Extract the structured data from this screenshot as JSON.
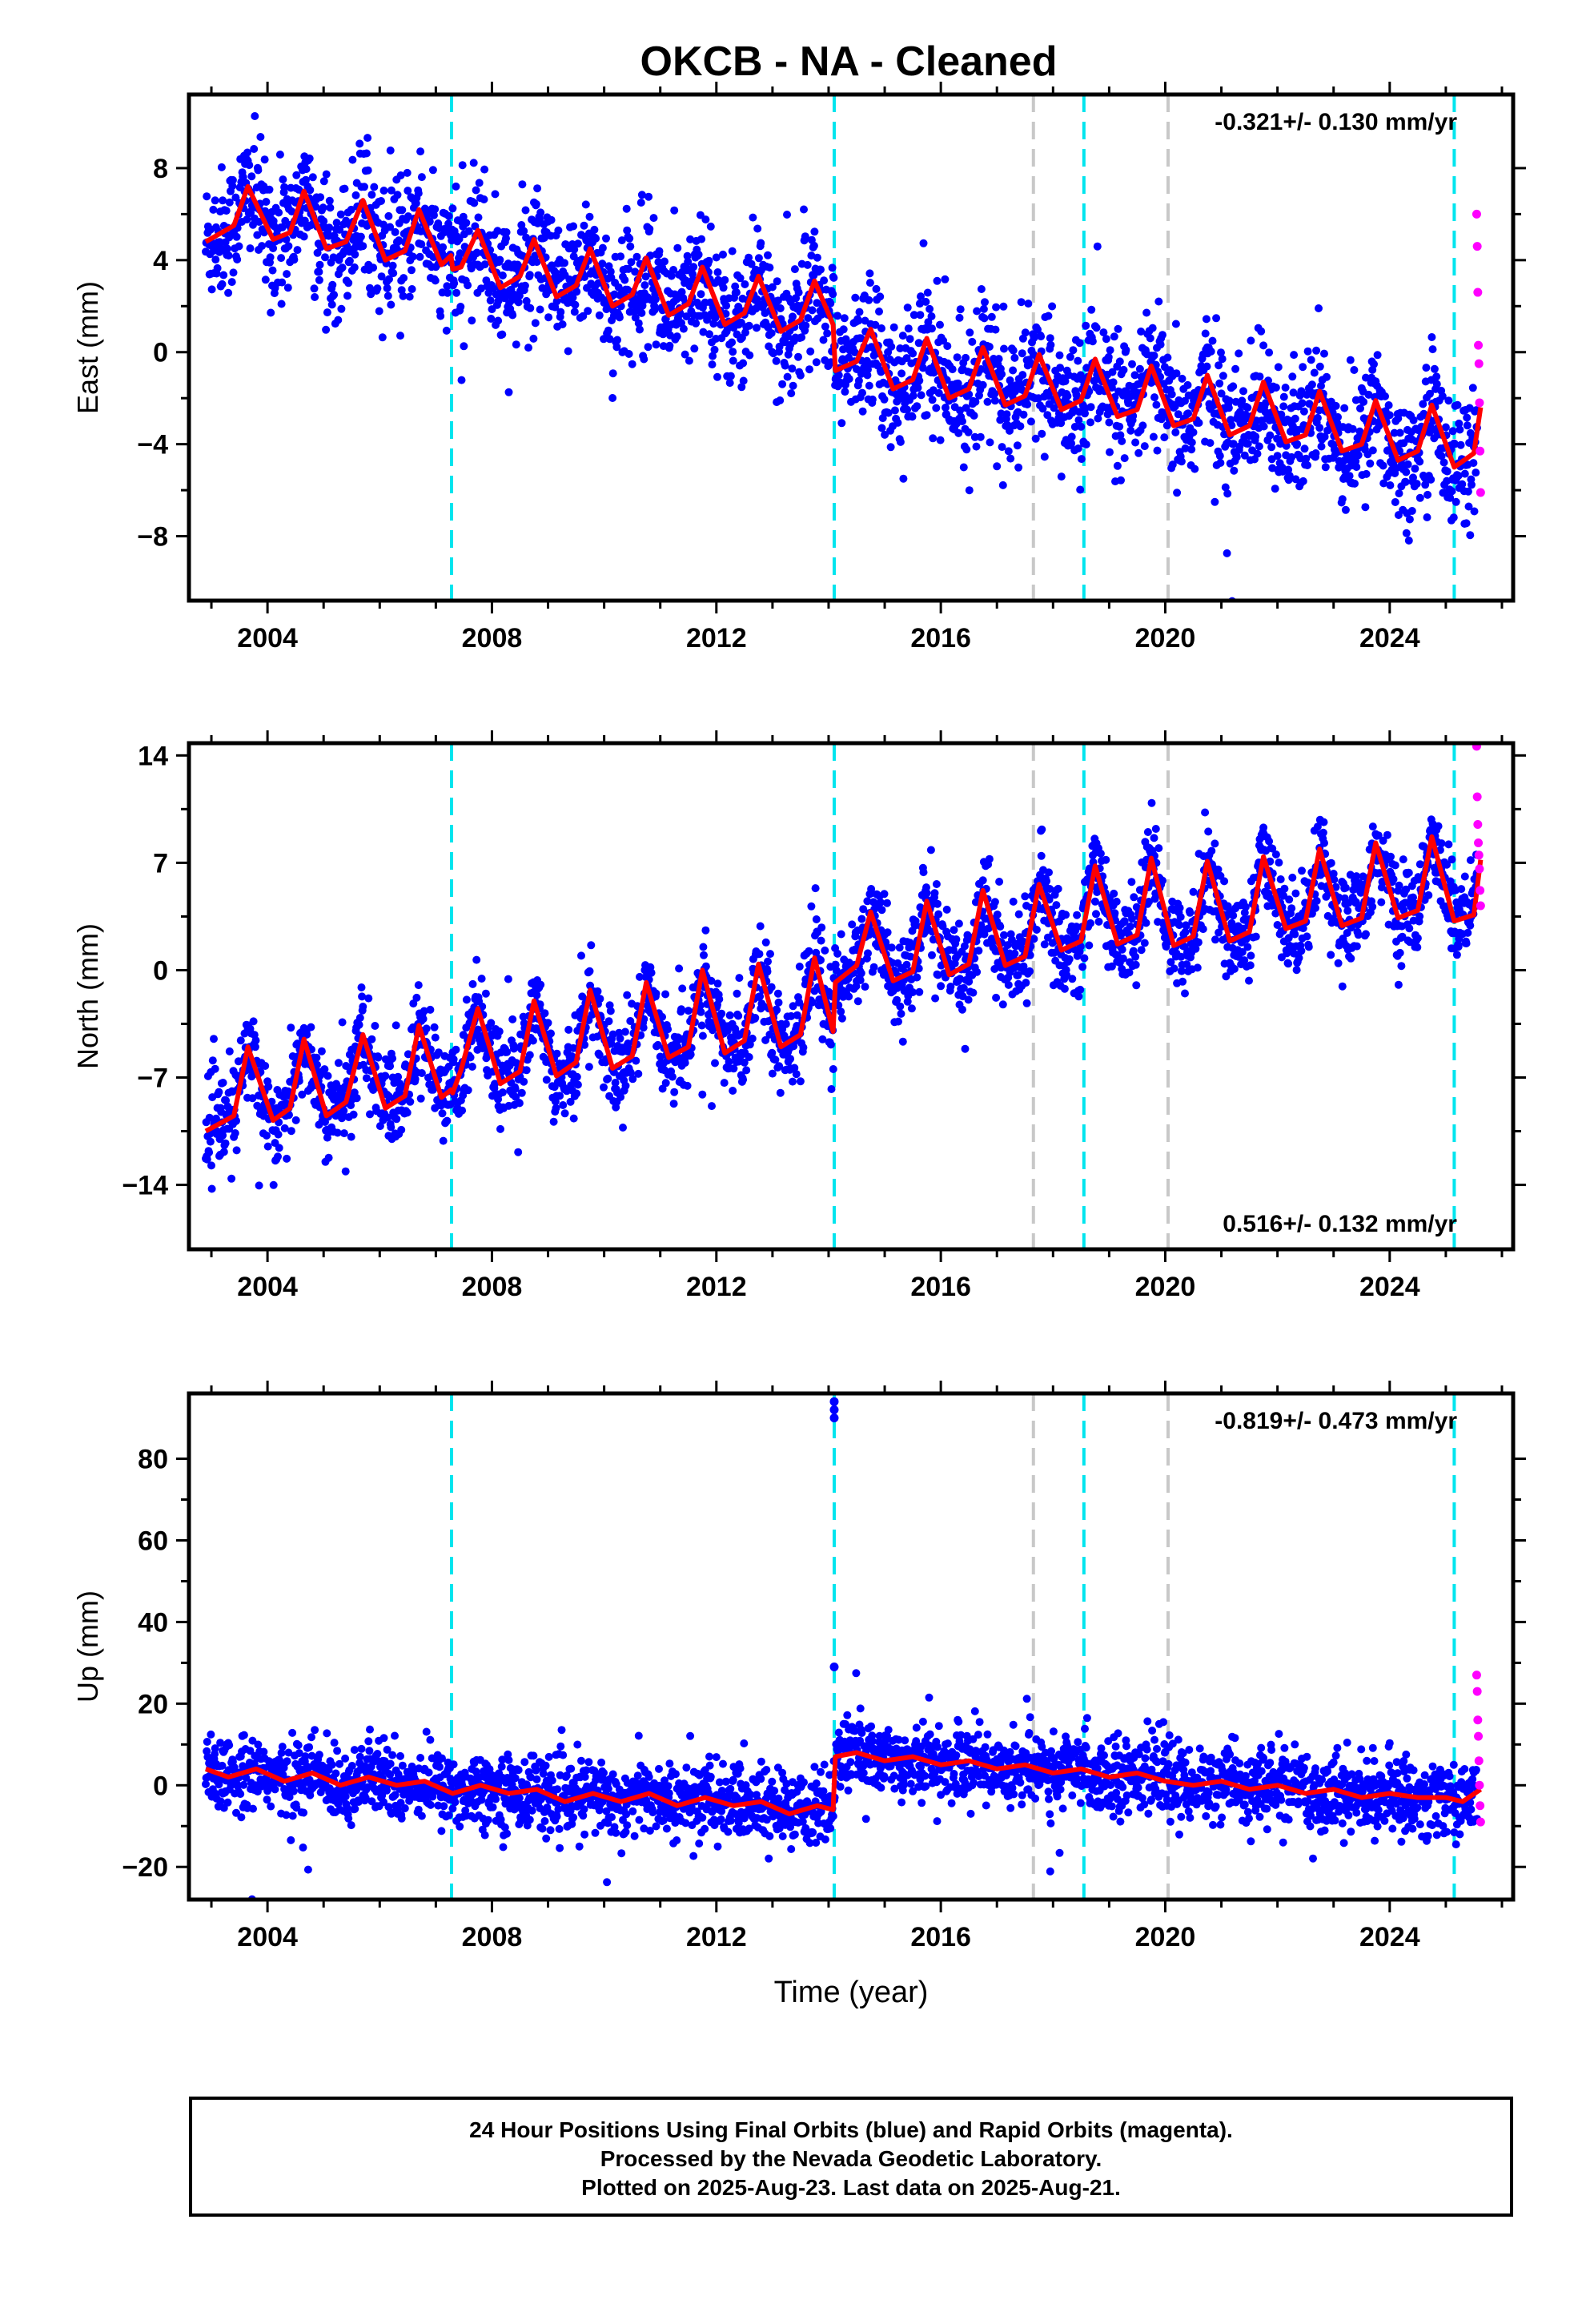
{
  "title": "OKCB  - NA - Cleaned",
  "colors": {
    "final_orbits": "#0000ff",
    "rapid_orbits": "#ff00ff",
    "model": "#ff0000",
    "equipment_change": "#00e5ee",
    "earthquake": "#c8c8c8"
  },
  "footer": {
    "line1": "24 Hour Positions Using Final Orbits (blue) and Rapid Orbits (magenta).",
    "line2": "Processed by the Nevada Geodetic Laboratory.",
    "line3": "Plotted on 2025-Aug-23. Last data on 2025-Aug-21."
  },
  "chart_data": [
    {
      "type": "scatter",
      "component": "east",
      "ylabel": "East (mm)",
      "xlabel": "",
      "xlim": [
        2002.6,
        2026.2
      ],
      "ylim": [
        -10.8,
        11.2
      ],
      "xticks": [
        2004,
        2008,
        2012,
        2016,
        2020,
        2024
      ],
      "yticks": [
        -8,
        -4,
        0,
        4,
        8
      ],
      "rate_label": "-0.321+/- 0.130 mm/yr",
      "rate_label_position": "top-right",
      "model": {
        "x": [
          2002.9,
          2003.4,
          2003.65,
          2004.1,
          2004.4,
          2004.65,
          2005.05,
          2005.4,
          2005.7,
          2006.1,
          2006.45,
          2006.7,
          2007.1,
          2007.27,
          2007.3,
          2007.45,
          2007.75,
          2008.15,
          2008.5,
          2008.75,
          2009.15,
          2009.5,
          2009.75,
          2010.15,
          2010.5,
          2010.75,
          2011.15,
          2011.5,
          2011.75,
          2012.15,
          2012.5,
          2012.75,
          2013.15,
          2013.5,
          2013.75,
          2014.08,
          2014.12,
          2014.5,
          2014.75,
          2015.15,
          2015.5,
          2015.75,
          2016.15,
          2016.5,
          2016.75,
          2017.15,
          2017.5,
          2017.75,
          2018.15,
          2018.5,
          2018.75,
          2019.15,
          2019.5,
          2019.75,
          2020.15,
          2020.5,
          2020.75,
          2021.15,
          2021.5,
          2021.75,
          2022.15,
          2022.5,
          2022.75,
          2023.15,
          2023.5,
          2023.75,
          2024.15,
          2024.5,
          2024.75,
          2025.15,
          2025.5,
          2025.62
        ],
        "y": [
          4.8,
          5.5,
          7.2,
          4.9,
          5.2,
          7.0,
          4.5,
          4.8,
          6.6,
          4.0,
          4.4,
          6.2,
          3.8,
          4.2,
          3.6,
          3.7,
          5.3,
          2.8,
          3.3,
          4.9,
          2.4,
          2.9,
          4.5,
          2.0,
          2.5,
          4.1,
          1.6,
          2.1,
          3.7,
          1.2,
          1.7,
          3.3,
          0.9,
          1.4,
          3.1,
          1.2,
          -0.8,
          -0.4,
          1.0,
          -1.6,
          -1.2,
          0.6,
          -2.0,
          -1.6,
          0.2,
          -2.3,
          -1.9,
          -0.1,
          -2.5,
          -2.1,
          -0.3,
          -2.8,
          -2.5,
          -0.6,
          -3.2,
          -2.9,
          -1.0,
          -3.6,
          -3.2,
          -1.3,
          -3.9,
          -3.6,
          -1.7,
          -4.3,
          -4.0,
          -2.1,
          -4.7,
          -4.3,
          -2.3,
          -5.0,
          -4.4,
          -2.4
        ]
      },
      "rapid_points": {
        "x": [
          2025.55,
          2025.56,
          2025.57,
          2025.58,
          2025.59,
          2025.6,
          2025.61,
          2025.62
        ],
        "y": [
          6.0,
          4.6,
          2.6,
          0.3,
          -0.5,
          -2.2,
          -4.3,
          -6.1
        ]
      },
      "equipment_changes": [
        2007.28,
        2014.1,
        2018.55,
        2025.15
      ],
      "earthquakes": [
        2017.65,
        2020.05
      ],
      "scatter_noise": 1.4
    },
    {
      "type": "scatter",
      "component": "north",
      "ylabel": "North (mm)",
      "xlabel": "",
      "xlim": [
        2002.6,
        2026.2
      ],
      "ylim": [
        -18.2,
        14.8
      ],
      "xticks": [
        2004,
        2008,
        2012,
        2016,
        2020,
        2024
      ],
      "yticks": [
        -14,
        -7,
        0,
        7,
        14
      ],
      "rate_label": "0.516+/- 0.132 mm/yr",
      "rate_label_position": "bottom-right",
      "model": {
        "x": [
          2002.9,
          2003.4,
          2003.65,
          2004.1,
          2004.4,
          2004.65,
          2005.05,
          2005.4,
          2005.7,
          2006.1,
          2006.45,
          2006.7,
          2007.1,
          2007.27,
          2007.3,
          2007.45,
          2007.75,
          2008.15,
          2008.5,
          2008.75,
          2009.15,
          2009.5,
          2009.75,
          2010.15,
          2010.5,
          2010.75,
          2011.15,
          2011.5,
          2011.75,
          2012.15,
          2012.5,
          2012.75,
          2013.15,
          2013.5,
          2013.75,
          2014.08,
          2014.12,
          2014.5,
          2014.75,
          2015.15,
          2015.5,
          2015.75,
          2016.15,
          2016.5,
          2016.75,
          2017.15,
          2017.5,
          2017.75,
          2018.15,
          2018.5,
          2018.75,
          2019.15,
          2019.5,
          2019.75,
          2020.15,
          2020.5,
          2020.75,
          2021.15,
          2021.5,
          2021.75,
          2022.15,
          2022.5,
          2022.75,
          2023.15,
          2023.5,
          2023.75,
          2024.15,
          2024.5,
          2024.75,
          2025.15,
          2025.5,
          2025.62
        ],
        "y": [
          -10.5,
          -9.5,
          -5.0,
          -9.8,
          -9.0,
          -4.5,
          -9.5,
          -8.6,
          -4.2,
          -9.0,
          -8.2,
          -3.6,
          -8.3,
          -7.8,
          -8.0,
          -6.5,
          -2.5,
          -7.4,
          -6.6,
          -2.0,
          -6.9,
          -6.0,
          -1.3,
          -6.4,
          -5.6,
          -0.8,
          -5.7,
          -5.0,
          0.0,
          -5.4,
          -4.6,
          0.4,
          -5.0,
          -4.2,
          0.8,
          -4.0,
          -0.8,
          0.3,
          3.8,
          -0.7,
          -0.1,
          4.5,
          -0.3,
          0.4,
          5.2,
          0.3,
          0.9,
          5.6,
          1.3,
          1.9,
          6.8,
          1.7,
          2.3,
          7.3,
          1.6,
          2.2,
          7.1,
          1.9,
          2.5,
          7.4,
          2.7,
          3.2,
          7.9,
          2.9,
          3.4,
          8.3,
          3.4,
          3.9,
          8.7,
          3.2,
          3.6,
          7.2
        ]
      },
      "rapid_points": {
        "x": [
          2025.55,
          2025.56,
          2025.57,
          2025.58,
          2025.59,
          2025.6,
          2025.61,
          2025.62
        ],
        "y": [
          14.6,
          11.3,
          9.5,
          8.3,
          7.5,
          6.6,
          5.2,
          4.2
        ]
      },
      "equipment_changes": [
        2007.28,
        2014.1,
        2018.55,
        2025.15
      ],
      "earthquakes": [
        2017.65,
        2020.05
      ],
      "scatter_noise": 1.5
    },
    {
      "type": "scatter",
      "component": "up",
      "ylabel": "Up (mm)",
      "xlabel": "Time (year)",
      "xlim": [
        2002.6,
        2026.2
      ],
      "ylim": [
        -28,
        96
      ],
      "xticks": [
        2004,
        2008,
        2012,
        2016,
        2020,
        2024
      ],
      "yticks": [
        -20,
        0,
        20,
        40,
        60,
        80
      ],
      "rate_label": "-0.819+/- 0.473 mm/yr",
      "rate_label_position": "top-right",
      "model": {
        "x": [
          2002.9,
          2003.3,
          2003.8,
          2004.3,
          2004.8,
          2005.3,
          2005.8,
          2006.3,
          2006.8,
          2007.3,
          2007.8,
          2008.3,
          2008.8,
          2009.3,
          2009.8,
          2010.3,
          2010.8,
          2011.3,
          2011.8,
          2012.3,
          2012.8,
          2013.3,
          2013.8,
          2014.08,
          2014.12,
          2014.5,
          2015.0,
          2015.5,
          2016.0,
          2016.5,
          2017.0,
          2017.5,
          2018.0,
          2018.5,
          2019.0,
          2019.5,
          2020.0,
          2020.5,
          2021.0,
          2021.5,
          2022.0,
          2022.5,
          2023.0,
          2023.5,
          2024.0,
          2024.5,
          2025.0,
          2025.3,
          2025.62
        ],
        "y": [
          4,
          2,
          4,
          1,
          3,
          0,
          2,
          0,
          1,
          -2,
          0,
          -2,
          -1,
          -4,
          -2,
          -4,
          -2,
          -5,
          -3,
          -5,
          -4,
          -7,
          -5,
          -6,
          7,
          8,
          6,
          7,
          5,
          6,
          4,
          5,
          3,
          4,
          2,
          3,
          1,
          0,
          1,
          -1,
          0,
          -2,
          -1,
          -3,
          -2,
          -3,
          -3,
          -4,
          -1
        ]
      },
      "rapid_points": {
        "x": [
          2025.55,
          2025.56,
          2025.57,
          2025.58,
          2025.59,
          2025.6,
          2025.61,
          2025.62
        ],
        "y": [
          27,
          23,
          16,
          12,
          6,
          0,
          -5,
          -9
        ]
      },
      "extra_points": {
        "x": [
          2014.1,
          2014.1,
          2014.1,
          2014.1
        ],
        "y": [
          94,
          92,
          90,
          29
        ]
      },
      "equipment_changes": [
        2007.28,
        2014.1,
        2018.55,
        2025.15
      ],
      "earthquakes": [
        2017.65,
        2020.05
      ],
      "scatter_noise": 4.5
    }
  ]
}
